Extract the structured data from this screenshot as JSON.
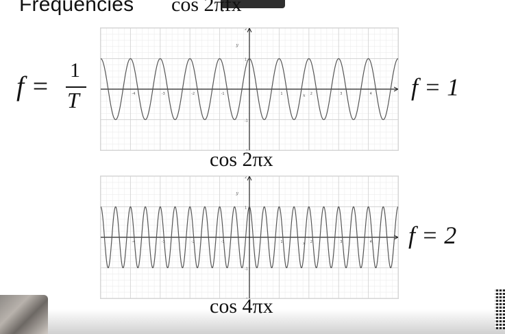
{
  "slide": {
    "title": "Frequencies",
    "title_math": "cos 2πfx"
  },
  "left_formula": {
    "lhs": "f =",
    "numerator": "1",
    "denominator": "T"
  },
  "plots": [
    {
      "frequency_label": "f = 1",
      "caption": "cos 2πx",
      "frequency": 1
    },
    {
      "frequency_label": "f = 2",
      "caption": "cos 4πx",
      "frequency": 2
    }
  ],
  "chart_data": [
    {
      "type": "line",
      "function": "cos(2πx)",
      "frequency": 1,
      "xlim": [
        -5,
        5
      ],
      "ylim": [
        -2,
        2
      ],
      "x_ticks": [
        -4,
        -3,
        -2,
        -1,
        0,
        1,
        2,
        3,
        4
      ],
      "y_ticks": [
        -2,
        -1,
        0,
        1,
        2
      ],
      "xlabel": "x",
      "ylabel": "y",
      "grid": true
    },
    {
      "type": "line",
      "function": "cos(4πx)",
      "frequency": 2,
      "xlim": [
        -5,
        5
      ],
      "ylim": [
        -2,
        2
      ],
      "x_ticks": [
        -4,
        -3,
        -2,
        -1,
        0,
        1,
        2,
        3,
        4
      ],
      "y_ticks": [
        -2,
        -1,
        0,
        1,
        2
      ],
      "xlabel": "x",
      "ylabel": "y",
      "grid": true
    }
  ],
  "colors": {
    "curve": "#555555",
    "grid_major": "#d4d4d4",
    "grid_minor": "#ececec",
    "axis": "#222222"
  }
}
